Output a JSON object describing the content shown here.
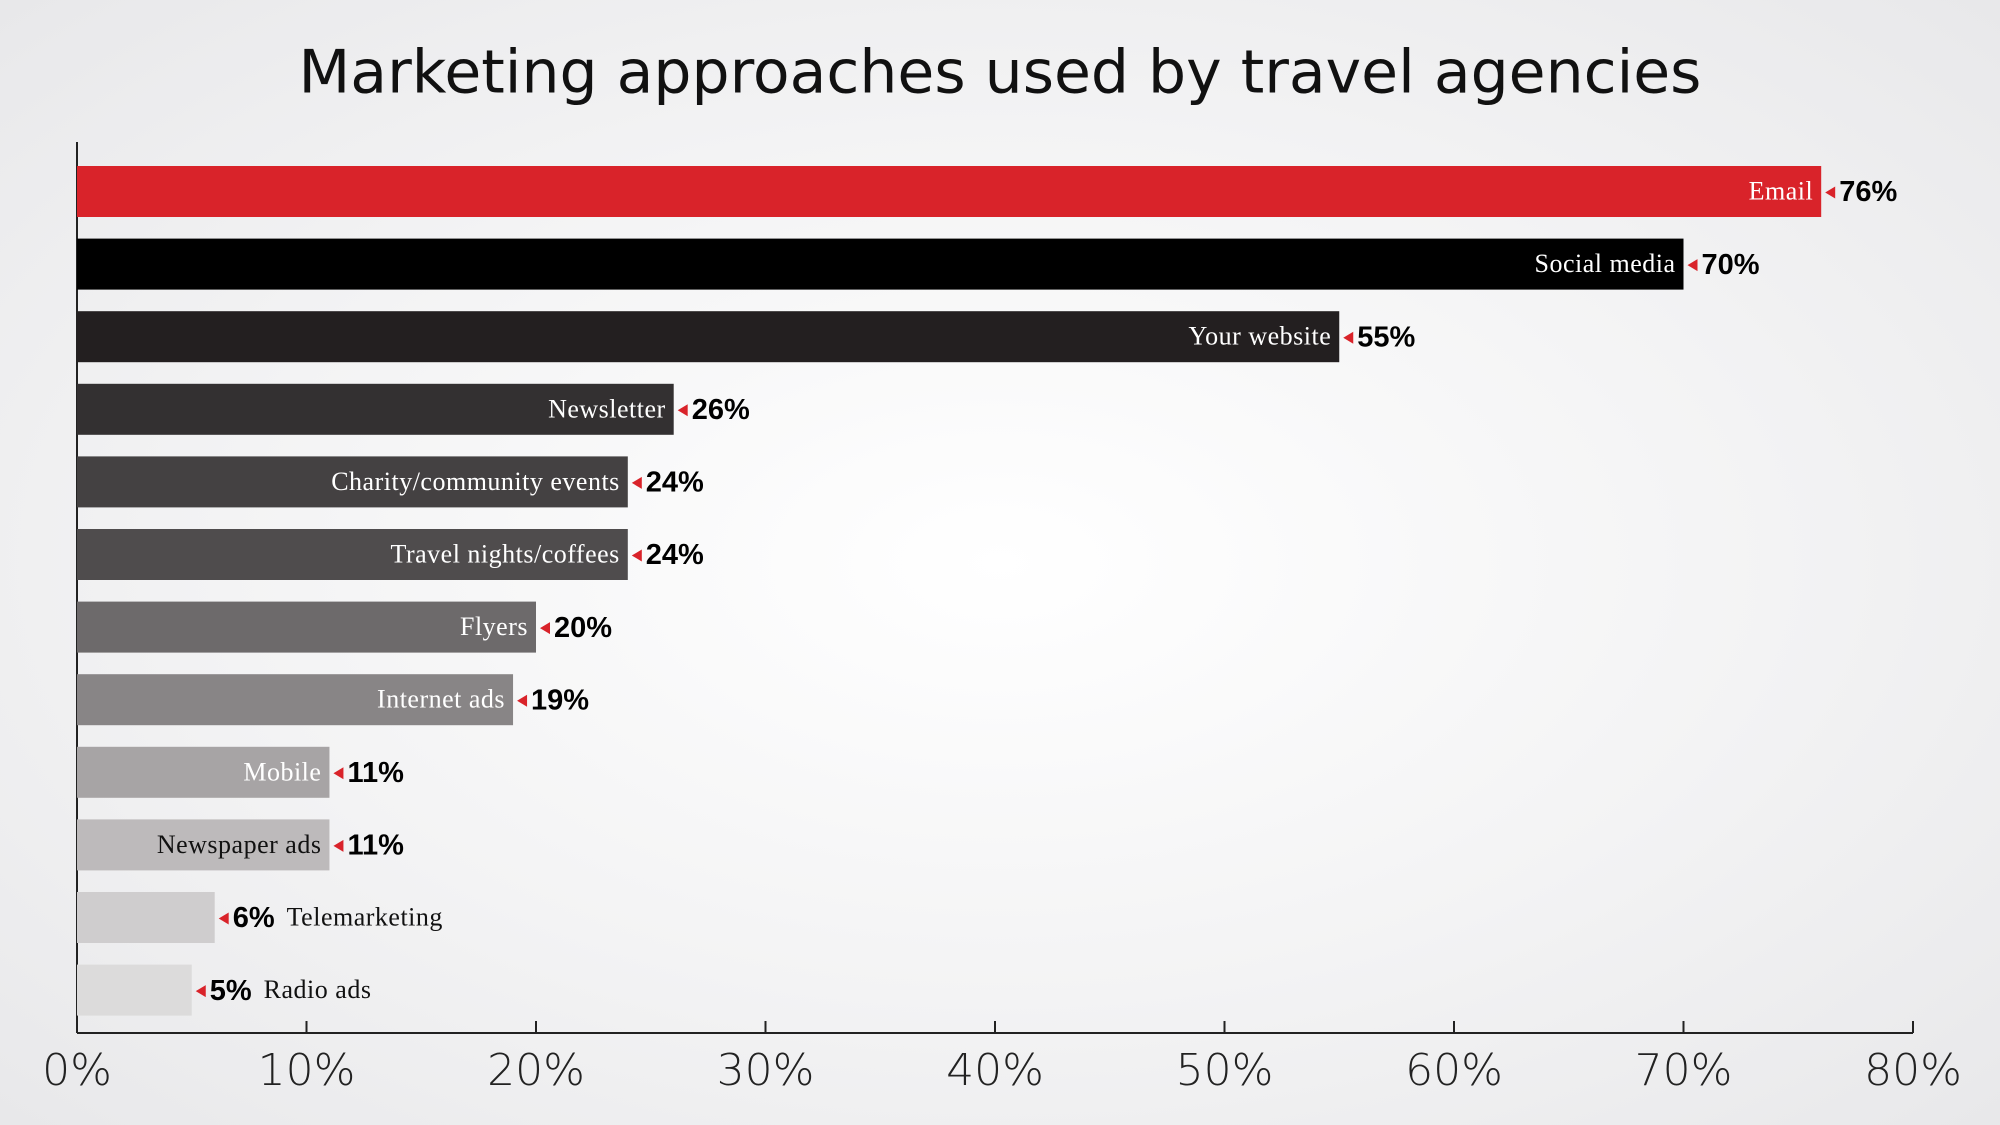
{
  "chart_data": {
    "type": "bar",
    "orientation": "horizontal",
    "title": "Marketing approaches used by travel agencies",
    "categories": [
      "Email",
      "Social media",
      "Your website",
      "Newsletter",
      "Charity/community events",
      "Travel nights/coffees",
      "Flyers",
      "Internet ads",
      "Mobile",
      "Newspaper ads",
      "Telemarketing",
      "Radio ads"
    ],
    "values": [
      76,
      70,
      55,
      26,
      24,
      24,
      20,
      19,
      11,
      11,
      6,
      5
    ],
    "value_labels": [
      "76%",
      "70%",
      "55%",
      "26%",
      "24%",
      "24%",
      "20%",
      "19%",
      "11%",
      "11%",
      "6%",
      "5%"
    ],
    "colors": [
      "#d9232a",
      "#000000",
      "#231f20",
      "#333031",
      "#444142",
      "#4f4c4d",
      "#6d6a6b",
      "#888586",
      "#a7a4a5",
      "#bdbabb",
      "#cfcdce",
      "#dcdbdb"
    ],
    "marker_color": "#d9232a",
    "xlim": [
      0,
      80
    ],
    "xticks": [
      {
        "value": 0,
        "label": "0%"
      },
      {
        "value": 10,
        "label": "10%"
      },
      {
        "value": 20,
        "label": "20%"
      },
      {
        "value": 30,
        "label": "30%"
      },
      {
        "value": 40,
        "label": "40%"
      },
      {
        "value": 50,
        "label": "50%"
      },
      {
        "value": 60,
        "label": "60%"
      },
      {
        "value": 70,
        "label": "70%"
      },
      {
        "value": 80,
        "label": "80%"
      }
    ],
    "grid": false
  }
}
